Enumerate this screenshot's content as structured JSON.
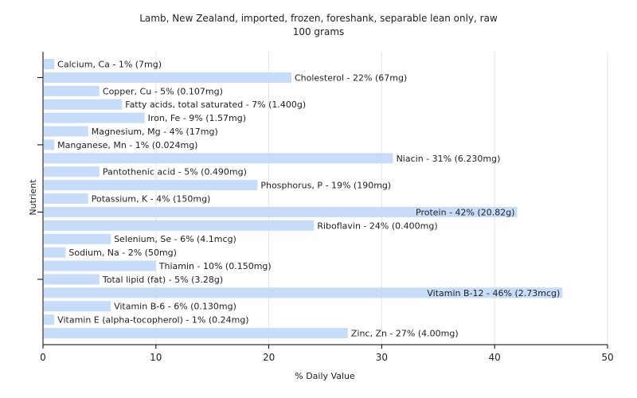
{
  "chart_data": {
    "type": "bar",
    "orientation": "horizontal",
    "title": "Lamb, New Zealand, imported, frozen, foreshank, separable lean only, raw",
    "subtitle": "100 grams",
    "xlabel": "% Daily Value",
    "ylabel": "Nutrient",
    "xlim": [
      0,
      50
    ],
    "xticks": [
      "0",
      "10",
      "20",
      "30",
      "40",
      "50"
    ],
    "grid": true,
    "bar_color": "#c6dcf8",
    "bars": [
      {
        "label": "Calcium, Ca - 1% (7mg)",
        "value": 1
      },
      {
        "label": "Cholesterol - 22% (67mg)",
        "value": 22
      },
      {
        "label": "Copper, Cu - 5% (0.107mg)",
        "value": 5
      },
      {
        "label": "Fatty acids, total saturated - 7% (1.400g)",
        "value": 7
      },
      {
        "label": "Iron, Fe - 9% (1.57mg)",
        "value": 9
      },
      {
        "label": "Magnesium, Mg - 4% (17mg)",
        "value": 4
      },
      {
        "label": "Manganese, Mn - 1% (0.024mg)",
        "value": 1
      },
      {
        "label": "Niacin - 31% (6.230mg)",
        "value": 31
      },
      {
        "label": "Pantothenic acid - 5% (0.490mg)",
        "value": 5
      },
      {
        "label": "Phosphorus, P - 19% (190mg)",
        "value": 19
      },
      {
        "label": "Potassium, K - 4% (150mg)",
        "value": 4
      },
      {
        "label": "Protein - 42% (20.82g)",
        "value": 42
      },
      {
        "label": "Riboflavin - 24% (0.400mg)",
        "value": 24
      },
      {
        "label": "Selenium, Se - 6% (4.1mcg)",
        "value": 6
      },
      {
        "label": "Sodium, Na - 2% (50mg)",
        "value": 2
      },
      {
        "label": "Thiamin - 10% (0.150mg)",
        "value": 10
      },
      {
        "label": "Total lipid (fat) - 5% (3.28g)",
        "value": 5
      },
      {
        "label": "Vitamin B-12 - 46% (2.73mcg)",
        "value": 46
      },
      {
        "label": "Vitamin B-6 - 6% (0.130mg)",
        "value": 6
      },
      {
        "label": "Vitamin E (alpha-tocopherol) - 1% (0.24mg)",
        "value": 1
      },
      {
        "label": "Zinc, Zn - 27% (4.00mg)",
        "value": 27
      }
    ]
  }
}
